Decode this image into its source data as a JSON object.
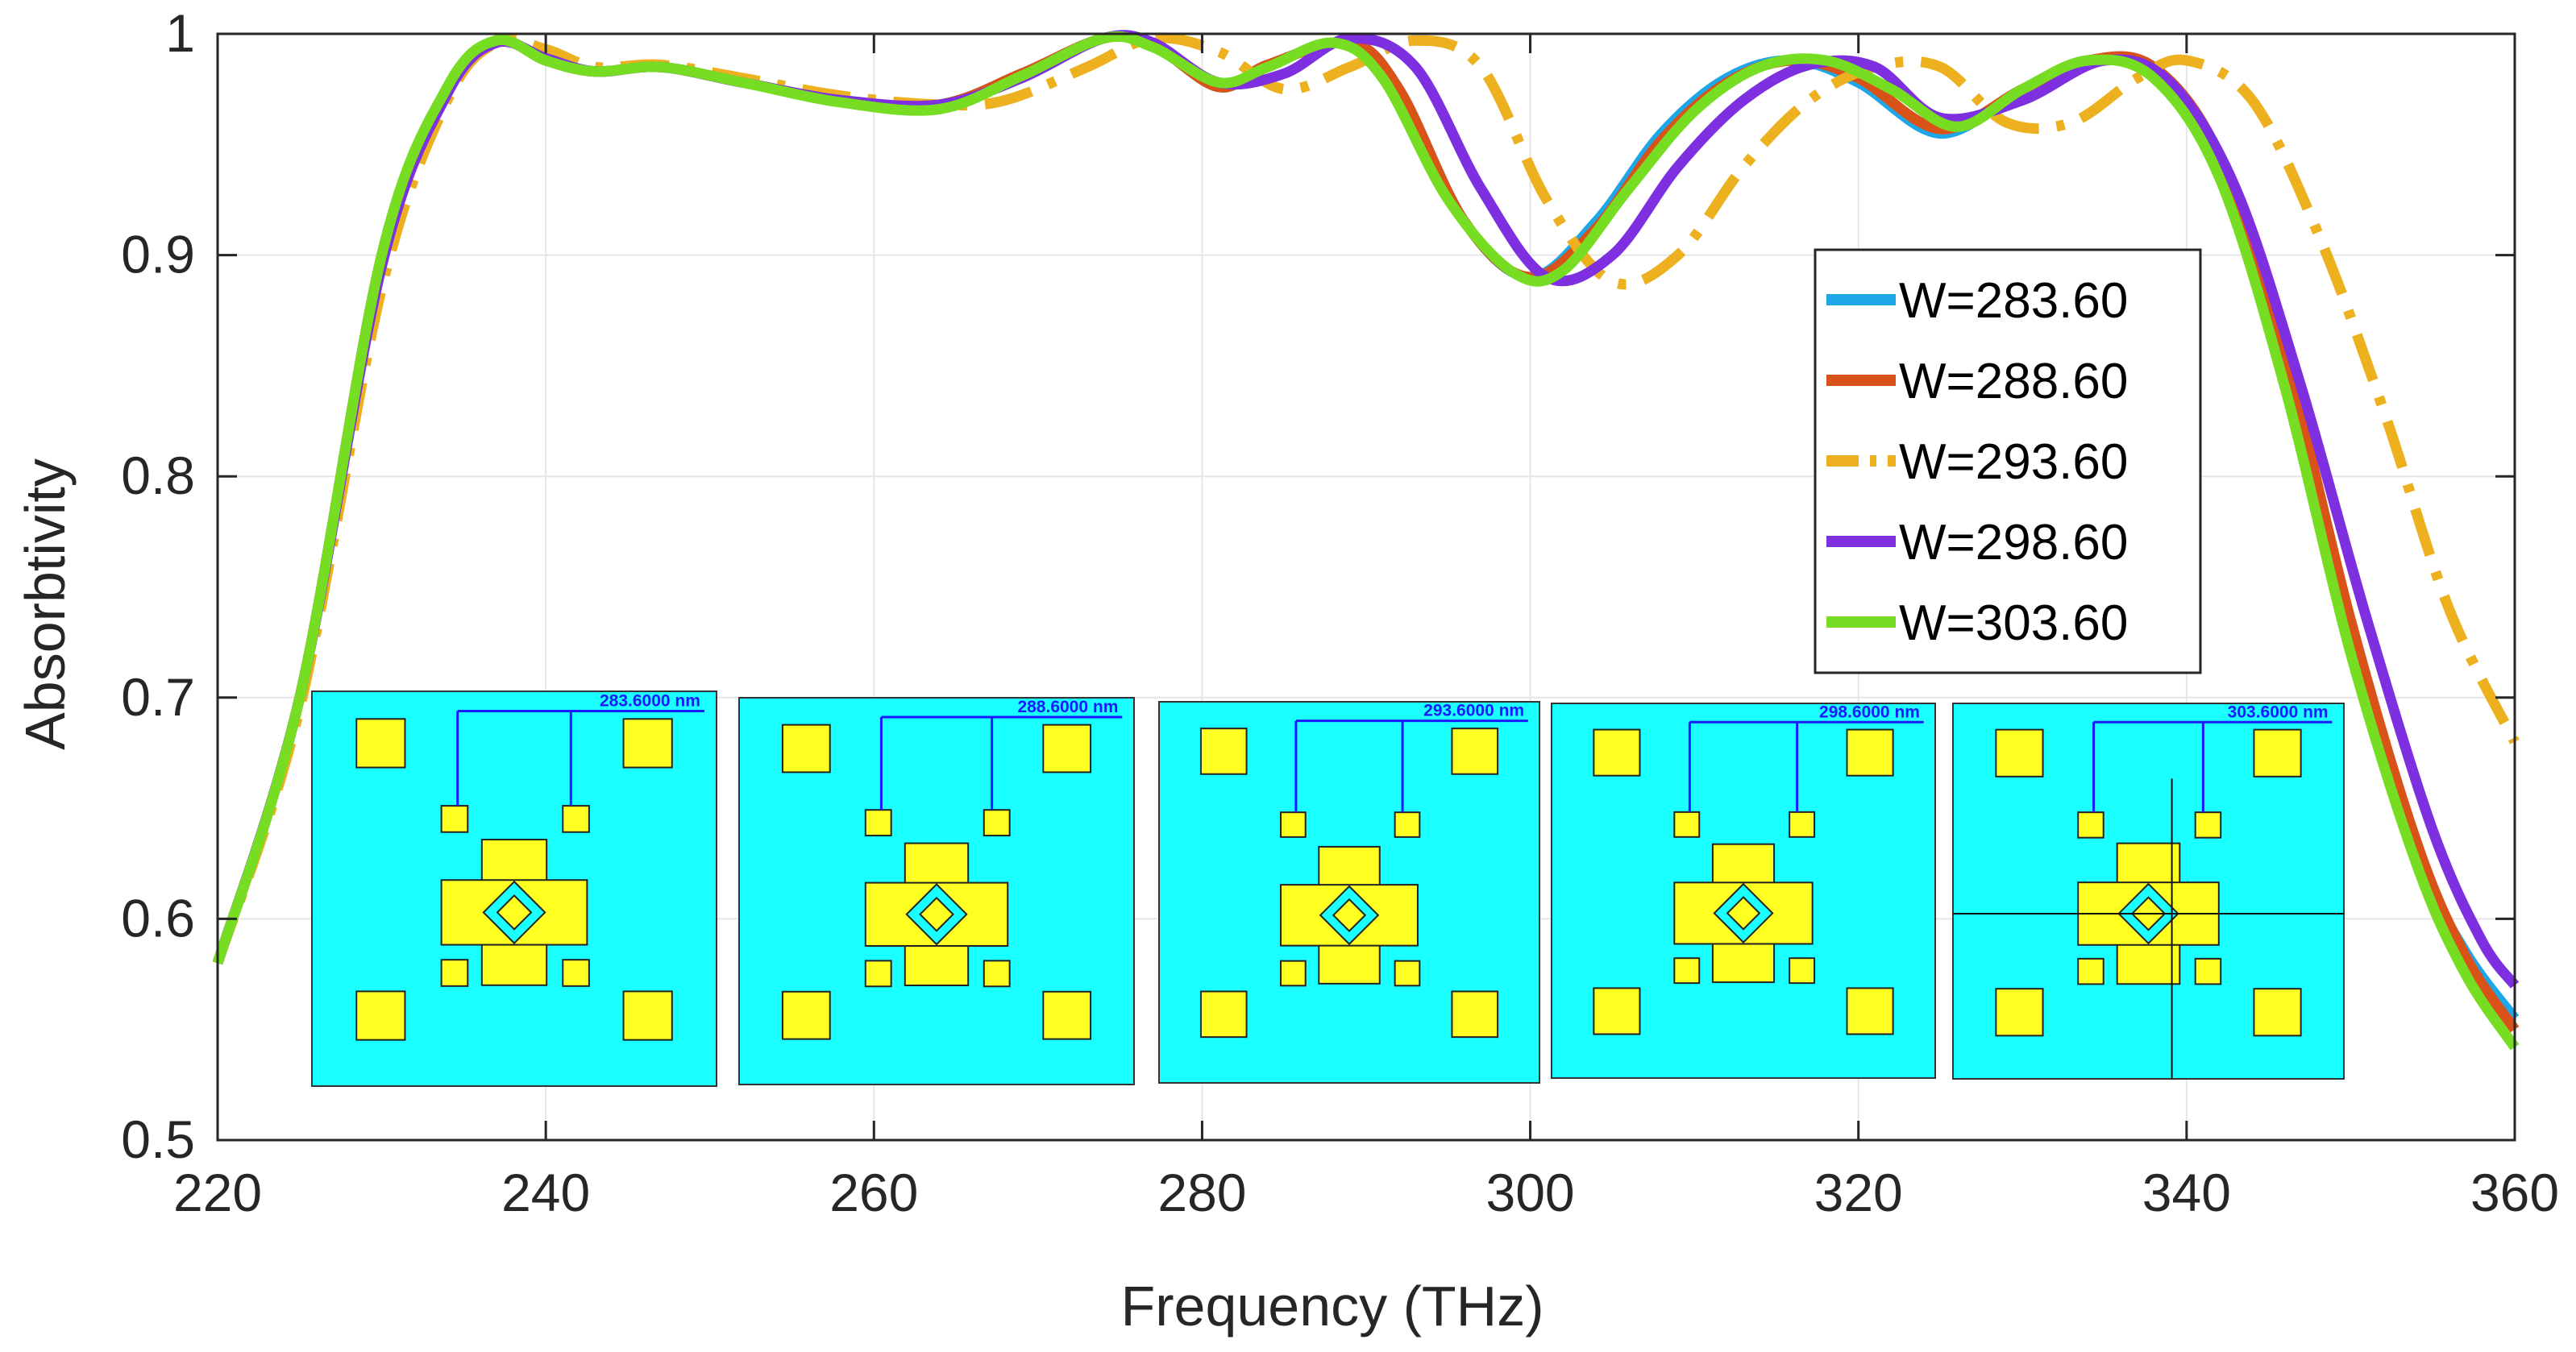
{
  "chart_data": {
    "type": "line",
    "title": "",
    "xlabel": "Frequency (THz)",
    "ylabel": "Absorbtivity",
    "xlim": [
      220,
      360
    ],
    "ylim": [
      0.5,
      1
    ],
    "xticks": [
      "220",
      "240",
      "260",
      "280",
      "300",
      "320",
      "340",
      "360"
    ],
    "yticks": [
      "0.5",
      "0.6",
      "0.7",
      "0.8",
      "0.9",
      "1"
    ],
    "grid": true,
    "legend_position": "right",
    "series": [
      {
        "name": "W=283.60",
        "color": "#1ea7e8",
        "style": "solid",
        "x": [
          220,
          225,
          230,
          234,
          237,
          240,
          243,
          247,
          252,
          258,
          264,
          269,
          274,
          277,
          281,
          284,
          289,
          292,
          296,
          300,
          304,
          308,
          312,
          316,
          320,
          325,
          330,
          334,
          338,
          342,
          346,
          350,
          354,
          357,
          360
        ],
        "y": [
          0.58,
          0.7,
          0.9,
          0.975,
          0.997,
          0.988,
          0.983,
          0.985,
          0.978,
          0.97,
          0.968,
          0.982,
          0.998,
          0.995,
          0.976,
          0.986,
          0.996,
          0.975,
          0.915,
          0.89,
          0.915,
          0.955,
          0.98,
          0.988,
          0.978,
          0.955,
          0.975,
          0.988,
          0.982,
          0.94,
          0.85,
          0.73,
          0.63,
          0.585,
          0.555
        ]
      },
      {
        "name": "W=288.60",
        "color": "#d95319",
        "style": "solid",
        "x": [
          220,
          225,
          230,
          234,
          237,
          240,
          243,
          247,
          252,
          258,
          264,
          269,
          274,
          277,
          281,
          284,
          289,
          292,
          296,
          300,
          304,
          308,
          312,
          316,
          320,
          325,
          330,
          334,
          338,
          342,
          346,
          350,
          354,
          357,
          360
        ],
        "y": [
          0.58,
          0.7,
          0.9,
          0.975,
          0.997,
          0.988,
          0.983,
          0.985,
          0.978,
          0.97,
          0.968,
          0.982,
          0.998,
          0.995,
          0.976,
          0.986,
          0.996,
          0.975,
          0.915,
          0.89,
          0.912,
          0.952,
          0.978,
          0.988,
          0.98,
          0.957,
          0.975,
          0.988,
          0.985,
          0.945,
          0.855,
          0.735,
          0.635,
          0.583,
          0.55
        ]
      },
      {
        "name": "W=293.60",
        "color": "#edb120",
        "style": "dashed",
        "x": [
          220,
          225,
          230,
          234,
          237,
          240,
          243,
          247,
          252,
          258,
          264,
          268,
          273,
          277,
          281,
          285,
          289,
          293,
          297,
          301,
          305,
          309,
          313,
          317,
          321,
          325,
          329,
          333,
          337,
          340,
          344,
          348,
          352,
          356,
          360
        ],
        "y": [
          0.58,
          0.695,
          0.885,
          0.97,
          0.996,
          0.993,
          0.985,
          0.986,
          0.98,
          0.972,
          0.968,
          0.97,
          0.985,
          0.998,
          0.992,
          0.975,
          0.985,
          0.997,
          0.985,
          0.925,
          0.888,
          0.9,
          0.94,
          0.97,
          0.985,
          0.985,
          0.96,
          0.96,
          0.98,
          0.988,
          0.97,
          0.91,
          0.83,
          0.74,
          0.68
        ]
      },
      {
        "name": "W=298.60",
        "color": "#7e2fe0",
        "style": "solid",
        "x": [
          220,
          225,
          230,
          234,
          237,
          240,
          243,
          247,
          252,
          258,
          264,
          269,
          274,
          277,
          281,
          285,
          289,
          293,
          297,
          301,
          305,
          309,
          313,
          317,
          321,
          325,
          330,
          335,
          339,
          343,
          347,
          351,
          355,
          358,
          360
        ],
        "y": [
          0.58,
          0.7,
          0.895,
          0.973,
          0.996,
          0.989,
          0.983,
          0.985,
          0.978,
          0.97,
          0.968,
          0.98,
          0.998,
          0.996,
          0.978,
          0.982,
          0.998,
          0.985,
          0.93,
          0.89,
          0.9,
          0.94,
          0.97,
          0.986,
          0.985,
          0.962,
          0.97,
          0.988,
          0.978,
          0.93,
          0.84,
          0.735,
          0.64,
          0.59,
          0.57
        ]
      },
      {
        "name": "W=303.60",
        "color": "#77dd22",
        "style": "solid",
        "x": [
          220,
          225,
          230,
          234,
          237,
          240,
          243,
          247,
          252,
          258,
          264,
          269,
          274,
          277,
          281,
          284,
          288,
          291,
          295,
          299,
          302,
          306,
          310,
          314,
          318,
          322,
          326,
          330,
          334,
          338,
          342,
          346,
          350,
          354,
          357,
          360
        ],
        "y": [
          0.58,
          0.7,
          0.9,
          0.976,
          0.997,
          0.988,
          0.983,
          0.985,
          0.978,
          0.969,
          0.966,
          0.981,
          0.998,
          0.994,
          0.978,
          0.985,
          0.996,
          0.98,
          0.925,
          0.892,
          0.893,
          0.93,
          0.965,
          0.985,
          0.988,
          0.975,
          0.958,
          0.975,
          0.988,
          0.98,
          0.935,
          0.84,
          0.72,
          0.625,
          0.575,
          0.542
        ]
      }
    ],
    "insets": [
      {
        "label": "283.6000 nm"
      },
      {
        "label": "288.6000 nm"
      },
      {
        "label": "293.6000 nm"
      },
      {
        "label": "298.6000 nm"
      },
      {
        "label": "303.6000 nm"
      }
    ]
  }
}
